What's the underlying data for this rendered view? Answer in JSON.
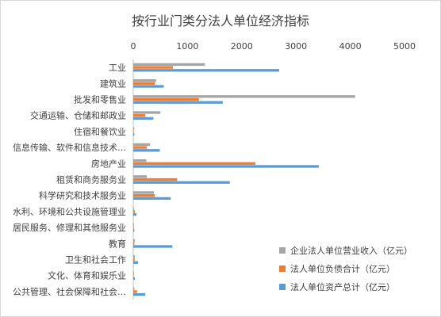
{
  "chart_data": {
    "type": "bar",
    "orientation": "horizontal",
    "title": "按行业门类分法人单位经济指标",
    "xlim": [
      0,
      5000
    ],
    "xticks": [
      "0",
      "1000",
      "2000",
      "3000",
      "4000",
      "5000"
    ],
    "grid": false,
    "legend_position": "bottom-right",
    "categories": [
      "工业",
      "建筑业",
      "批发和零售业",
      "交通运输、仓储和邮政业",
      "住宿和餐饮业",
      "信息传输、软件和信息技术…",
      "房地产业",
      "租赁和商务服务业",
      "科学研究和技术服务业",
      "水利、环境和公共设施管理业",
      "居民服务、修理和其他服务业",
      "教育",
      "卫生和社会工作",
      "文化、体育和娱乐业",
      "公共管理、社会保障和社会…"
    ],
    "series": [
      {
        "name": "企业法人单位营业收入（亿元）",
        "color": "#a5a5a5",
        "values": [
          1320,
          420,
          4090,
          500,
          20,
          310,
          240,
          250,
          380,
          15,
          15,
          30,
          30,
          15,
          20
        ]
      },
      {
        "name": "法人单位负债合计（亿元）",
        "color": "#ed7d31",
        "values": [
          730,
          400,
          1210,
          220,
          10,
          250,
          2250,
          810,
          400,
          30,
          12,
          20,
          25,
          10,
          70
        ]
      },
      {
        "name": "法人单位资产总计（亿元）",
        "color": "#5b9bd5",
        "values": [
          2690,
          560,
          1650,
          370,
          20,
          490,
          3420,
          1780,
          690,
          60,
          20,
          720,
          90,
          30,
          220
        ]
      }
    ]
  }
}
